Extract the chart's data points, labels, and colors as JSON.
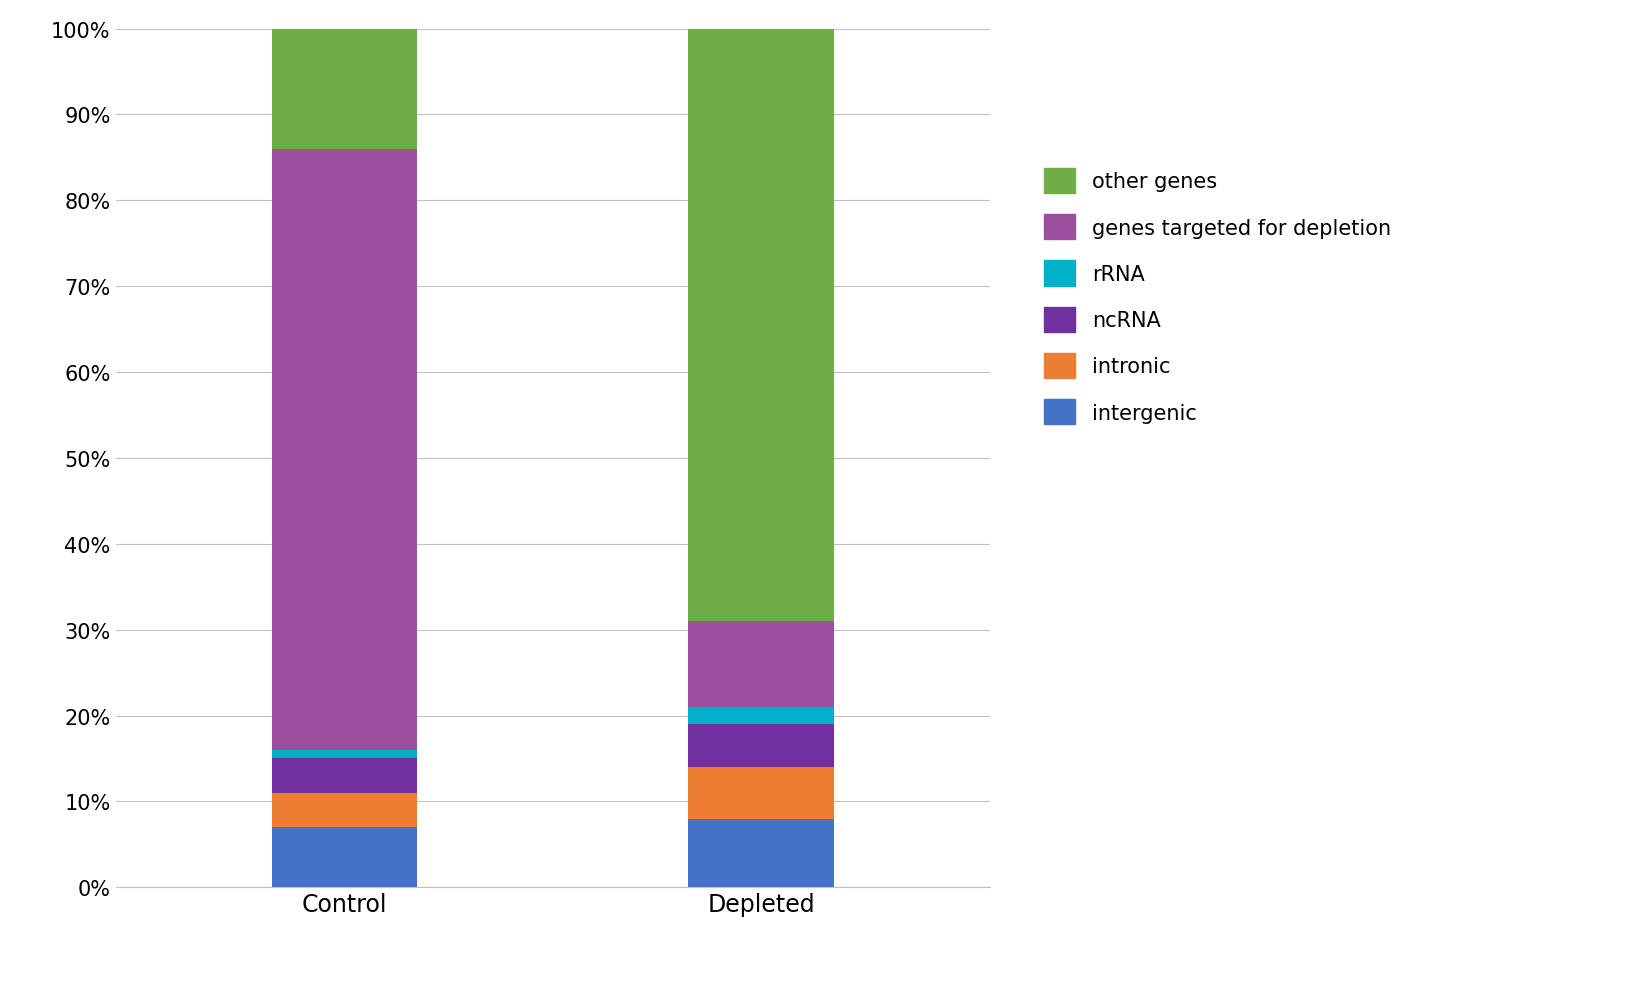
{
  "categories": [
    "Control",
    "Depleted"
  ],
  "segments": [
    {
      "label": "intergenic",
      "color": "#4472C4",
      "values": [
        0.07,
        0.08
      ]
    },
    {
      "label": "intronic",
      "color": "#ED7D31",
      "values": [
        0.04,
        0.06
      ]
    },
    {
      "label": "ncRNA",
      "color": "#7030A0",
      "values": [
        0.04,
        0.05
      ]
    },
    {
      "label": "rRNA",
      "color": "#00B0C8",
      "values": [
        0.01,
        0.02
      ]
    },
    {
      "label": "genes targeted for depletion",
      "color": "#9B4F9E",
      "values": [
        0.7,
        0.1
      ]
    },
    {
      "label": "other genes",
      "color": "#70AD47",
      "values": [
        0.14,
        0.69
      ]
    }
  ],
  "ylim": [
    0,
    1.0
  ],
  "ytick_labels": [
    "0%",
    "10%",
    "20%",
    "30%",
    "40%",
    "50%",
    "60%",
    "70%",
    "80%",
    "90%",
    "100%"
  ],
  "ytick_values": [
    0,
    0.1,
    0.2,
    0.3,
    0.4,
    0.5,
    0.6,
    0.7,
    0.8,
    0.9,
    1.0
  ],
  "bar_width": 0.35,
  "background_color": "#FFFFFF",
  "grid_color": "#C0C0C0",
  "legend_fontsize": 15,
  "tick_fontsize": 15,
  "xlabel_fontsize": 17
}
